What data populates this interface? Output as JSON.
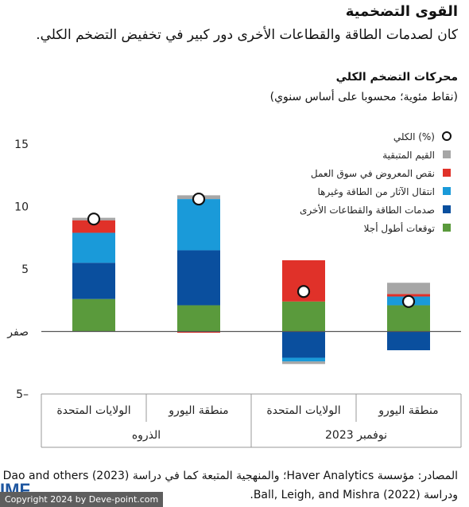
{
  "title": "القوى التضخمية",
  "subtitle": "كان لصدمات الطاقة والقطاعات الأخرى دور كبير في تخفيض التضخم الكلي.",
  "chart_data": {
    "type": "bar",
    "title": "محركات التضخم الكلي",
    "subtitle": "(نقاط مئوية؛ محسوبا على أساس سنوي)",
    "ylim": [
      -5,
      15
    ],
    "yticks": [
      {
        "value": 15,
        "label": "15"
      },
      {
        "value": 10,
        "label": "10"
      },
      {
        "value": 5,
        "label": "5"
      },
      {
        "value": 0,
        "label": "صفر"
      },
      {
        "value": -5,
        "label": "5–"
      }
    ],
    "categories": [
      "الولايات المتحدة",
      "منطقة اليورو",
      "الولايات المتحدة",
      "منطقة اليورو"
    ],
    "groups": [
      {
        "label": "الذروه",
        "categories": [
          0,
          1
        ]
      },
      {
        "label": "نوفمبر 2023",
        "categories": [
          2,
          3
        ]
      }
    ],
    "series": [
      {
        "name": "توقعات أطول أجلا",
        "color": "#5a9a3c",
        "values": [
          2.6,
          2.1,
          2.4,
          2.1
        ]
      },
      {
        "name": "صدمات الطاقة والقطاعات الأخرى",
        "color": "#0a4f9e",
        "values": [
          2.9,
          4.4,
          -2.1,
          -1.5
        ]
      },
      {
        "name": "انتقال الآثار من الطاقة وغيرها",
        "color": "#1a9ad9",
        "values": [
          2.4,
          4.1,
          -0.3,
          0.7
        ]
      },
      {
        "name": "نقص المعروض في سوق العمل",
        "color": "#e03129",
        "values": [
          1.0,
          -0.1,
          3.3,
          0.2
        ]
      },
      {
        "name": "القيم المتبقية",
        "color": "#a6a6a6",
        "values": [
          0.2,
          0.3,
          -0.2,
          0.9
        ]
      }
    ],
    "overlay": {
      "name": "الكلي (%)",
      "values": [
        9.0,
        10.6,
        3.2,
        2.4
      ]
    },
    "grid": false,
    "legend_position": "top-right"
  },
  "source": "المصادر: مؤسسة Haver Analytics؛ والمنهجية المتبعة كما في دراسة Dao and others (2023) ودراسة Ball, Leigh, and Mishra (2022).",
  "logo": "IMF",
  "copyright": "Copyright 2024 by Deve-point.com"
}
